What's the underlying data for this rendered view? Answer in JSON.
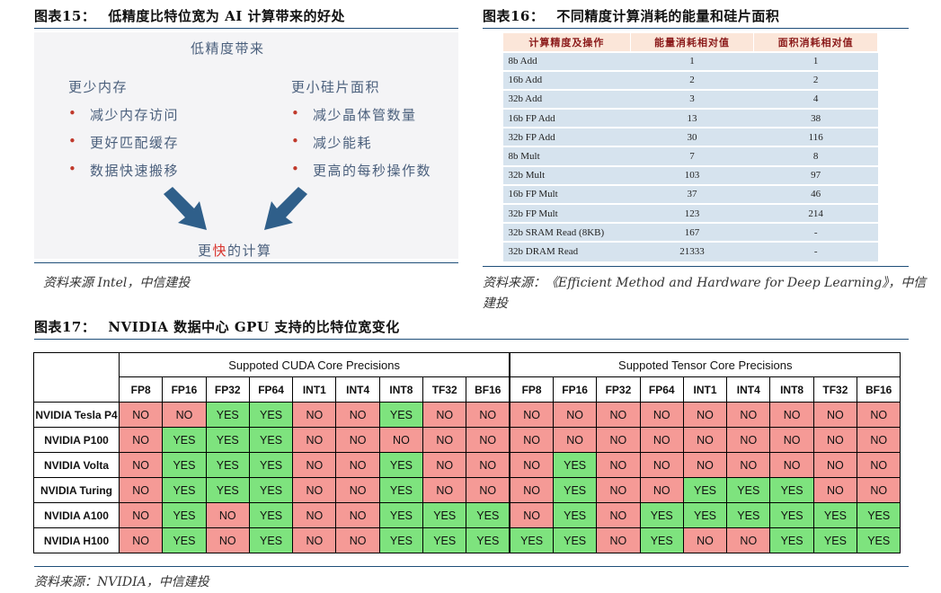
{
  "fig15": {
    "label": "图表15：",
    "title": "低精度比特位宽为 AI 计算带来的好处",
    "heading": "低精度带来",
    "left_title": "更少内存",
    "left_items": [
      "减少内存访问",
      "更好匹配缓存",
      "数据快速搬移"
    ],
    "right_title": "更小硅片面积",
    "right_items": [
      "减少晶体管数量",
      "减少能耗",
      "更高的每秒操作数"
    ],
    "bottom_pre": "更",
    "bottom_red": "快",
    "bottom_post": "的计算",
    "source": "资料来源 Intel，中信建投",
    "arrow_color": "#2f5f8a",
    "bullet": "•"
  },
  "fig16": {
    "label": "图表16：",
    "title": "不同精度计算消耗的能量和硅片面积",
    "headers": [
      "计算精度及操作",
      "能量消耗相对值",
      "面积消耗相对值"
    ],
    "rows": [
      [
        "8b Add",
        "1",
        "1"
      ],
      [
        "16b Add",
        "2",
        "2"
      ],
      [
        "32b Add",
        "3",
        "4"
      ],
      [
        "16b FP Add",
        "13",
        "38"
      ],
      [
        "32b FP Add",
        "30",
        "116"
      ],
      [
        "8b Mult",
        "7",
        "8"
      ],
      [
        "32b Mult",
        "103",
        "97"
      ],
      [
        "16b FP Mult",
        "37",
        "46"
      ],
      [
        "32b FP Mult",
        "123",
        "214"
      ],
      [
        "32b SRAM Read (8KB)",
        "167",
        "-"
      ],
      [
        "32b DRAM Read",
        "21333",
        "-"
      ]
    ],
    "source_line1": "资料来源：《Efficient Method and Hardware for Deep Learning》，中信",
    "source_line2": "建投"
  },
  "fig17": {
    "label": "图表17：",
    "title": "NVIDIA 数据中心 GPU 支持的比特位宽变化",
    "group1": "Suppoted CUDA Core Precisions",
    "group2": "Suppoted Tensor Core Precisions",
    "columns": [
      "FP8",
      "FP16",
      "FP32",
      "FP64",
      "INT1",
      "INT4",
      "INT8",
      "TF32",
      "BF16"
    ],
    "rows": [
      {
        "gpu": "NVIDIA Tesla P4",
        "cuda": [
          "NO",
          "NO",
          "YES",
          "YES",
          "NO",
          "NO",
          "YES",
          "NO",
          "NO"
        ],
        "tensor": [
          "NO",
          "NO",
          "NO",
          "NO",
          "NO",
          "NO",
          "NO",
          "NO",
          "NO"
        ]
      },
      {
        "gpu": "NVIDIA P100",
        "cuda": [
          "NO",
          "YES",
          "YES",
          "YES",
          "NO",
          "NO",
          "NO",
          "NO",
          "NO"
        ],
        "tensor": [
          "NO",
          "NO",
          "NO",
          "NO",
          "NO",
          "NO",
          "NO",
          "NO",
          "NO"
        ]
      },
      {
        "gpu": "NVIDIA Volta",
        "cuda": [
          "NO",
          "YES",
          "YES",
          "YES",
          "NO",
          "NO",
          "YES",
          "NO",
          "NO"
        ],
        "tensor": [
          "NO",
          "YES",
          "NO",
          "NO",
          "NO",
          "NO",
          "NO",
          "NO",
          "NO"
        ]
      },
      {
        "gpu": "NVIDIA Turing",
        "cuda": [
          "NO",
          "YES",
          "YES",
          "YES",
          "NO",
          "NO",
          "YES",
          "NO",
          "NO"
        ],
        "tensor": [
          "NO",
          "YES",
          "NO",
          "NO",
          "YES",
          "YES",
          "YES",
          "NO",
          "NO"
        ]
      },
      {
        "gpu": "NVIDIA A100",
        "cuda": [
          "NO",
          "YES",
          "NO",
          "YES",
          "NO",
          "NO",
          "YES",
          "YES",
          "YES"
        ],
        "tensor": [
          "NO",
          "YES",
          "NO",
          "YES",
          "YES",
          "YES",
          "YES",
          "YES",
          "YES"
        ]
      },
      {
        "gpu": "NVIDIA H100",
        "cuda": [
          "NO",
          "YES",
          "NO",
          "YES",
          "NO",
          "NO",
          "YES",
          "YES",
          "YES"
        ],
        "tensor": [
          "YES",
          "YES",
          "NO",
          "YES",
          "NO",
          "NO",
          "YES",
          "YES",
          "YES"
        ]
      }
    ],
    "source": "资料来源：NVIDIA，中信建投",
    "yes_color": "#7ee37e",
    "no_color": "#f59a96"
  }
}
